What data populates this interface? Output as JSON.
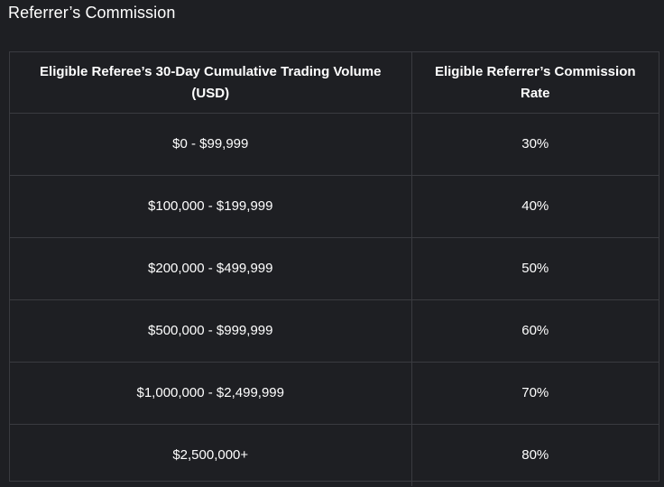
{
  "title": "Referrer’s Commission",
  "table": {
    "headers": [
      "Eligible Referee’s 30-Day Cumulative Trading Volume (USD)",
      "Eligible Referrer’s Commission Rate"
    ],
    "rows": [
      [
        "$0 - $99,999",
        "30%"
      ],
      [
        "$100,000 - $199,999",
        "40%"
      ],
      [
        "$200,000 - $499,999",
        "50%"
      ],
      [
        "$500,000 - $999,999",
        "60%"
      ],
      [
        "$1,000,000 - $2,499,999",
        "70%"
      ],
      [
        "$2,500,000+",
        "80%"
      ]
    ]
  },
  "colors": {
    "background": "#1e1f23",
    "border": "#3a3b40",
    "text": "#ffffff"
  }
}
